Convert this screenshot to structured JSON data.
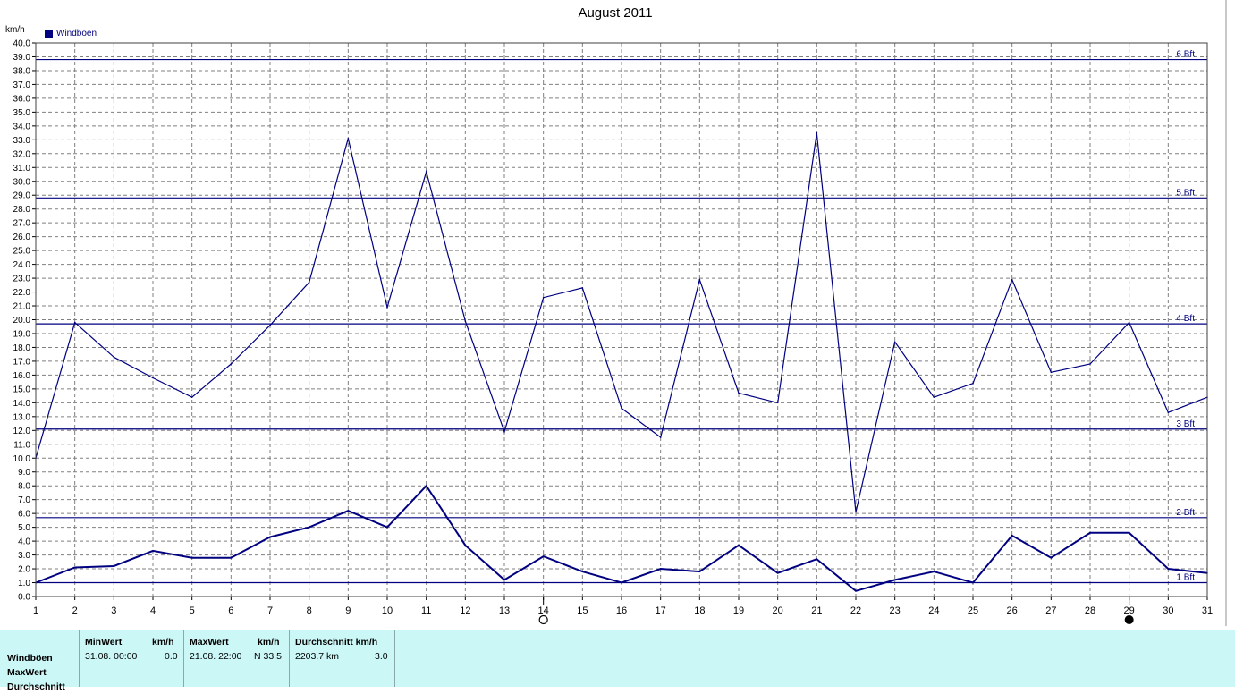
{
  "chart_data": {
    "type": "line",
    "title": "August 2011",
    "ylabel": "km/h",
    "xlim": [
      1,
      31
    ],
    "ylim": [
      0,
      40
    ],
    "y_tick_step": 1,
    "x": [
      1,
      2,
      3,
      4,
      5,
      6,
      7,
      8,
      9,
      10,
      11,
      12,
      13,
      14,
      15,
      16,
      17,
      18,
      19,
      20,
      21,
      22,
      23,
      24,
      25,
      26,
      27,
      28,
      29,
      30,
      31
    ],
    "x_tick_labels": [
      "1",
      "2",
      "3",
      "4",
      "5",
      "6",
      "7",
      "8",
      "9",
      "10",
      "11",
      "12",
      "13",
      "14",
      "15",
      "16",
      "17",
      "18",
      "19",
      "20",
      "21",
      "22",
      "23",
      "24",
      "25",
      "26",
      "27",
      "28",
      "29",
      "30",
      "31"
    ],
    "series": [
      {
        "name": "Windböen",
        "color": "#000080",
        "values": [
          10.0,
          19.8,
          17.3,
          15.8,
          14.4,
          16.8,
          19.6,
          22.7,
          33.1,
          20.9,
          30.7,
          19.9,
          11.9,
          21.6,
          22.3,
          13.6,
          11.5,
          22.9,
          14.7,
          14.0,
          33.5,
          6.1,
          18.4,
          14.4,
          15.4,
          22.9,
          16.2,
          16.8,
          19.8,
          13.3,
          14.4
        ]
      },
      {
        "color": "#000080",
        "values": [
          1.0,
          2.1,
          2.2,
          3.3,
          2.8,
          2.8,
          4.3,
          5.0,
          6.2,
          5.0,
          8.0,
          3.7,
          1.2,
          2.9,
          1.8,
          1.0,
          2.0,
          1.8,
          3.7,
          1.7,
          2.7,
          0.4,
          1.2,
          1.8,
          1.0,
          4.4,
          2.8,
          4.6,
          4.6,
          2.0,
          1.7
        ]
      }
    ],
    "reference_lines": [
      {
        "label": "1 Bft",
        "value": 1.0
      },
      {
        "label": "2 Bft",
        "value": 5.7
      },
      {
        "label": "3 Bft",
        "value": 12.1
      },
      {
        "label": "4 Bft",
        "value": 19.7
      },
      {
        "label": "5 Bft",
        "value": 28.8
      },
      {
        "label": "6 Bft",
        "value": 38.8
      }
    ],
    "moon_phases": [
      {
        "x": 14,
        "phase": "full-moon"
      },
      {
        "x": 29,
        "phase": "new-moon"
      }
    ],
    "grid": true,
    "legend_position": "top-left"
  },
  "stats": {
    "row_labels": [
      "Windböen",
      "MaxWert",
      "Durchschnitt"
    ],
    "min": {
      "header": "MinWert",
      "unit": "km/h",
      "datetime": "31.08.  00:00",
      "value": "0.0"
    },
    "max": {
      "header": "MaxWert",
      "unit": "km/h",
      "datetime": "21.08.  22:00",
      "value": "N 33.5"
    },
    "avg": {
      "header": "Durchschnitt km/h",
      "distance": "2203.7 km",
      "value": "3.0"
    }
  }
}
